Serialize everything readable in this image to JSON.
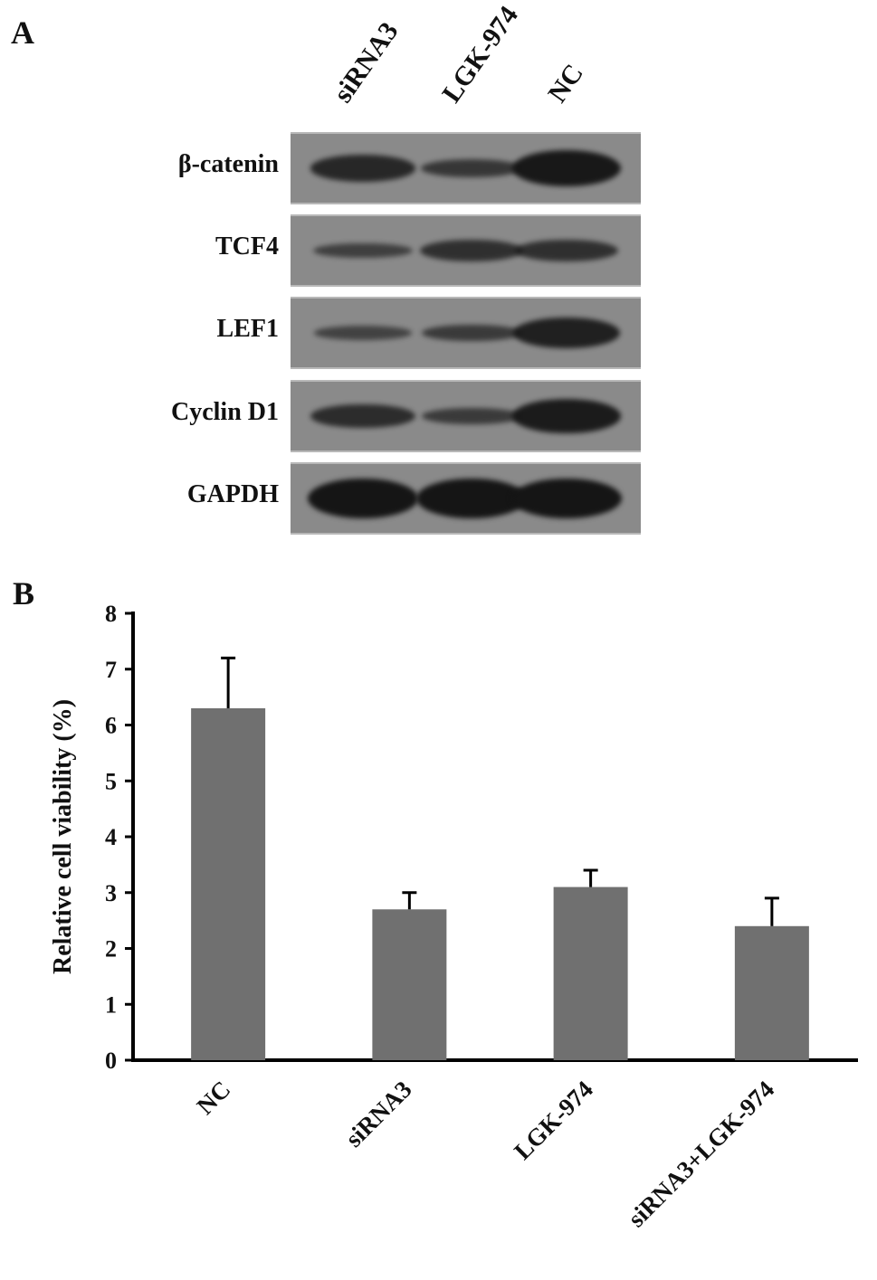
{
  "panel_a": {
    "label": "A",
    "lanes": [
      "siRNA3",
      "LGK-974",
      "NC"
    ],
    "rows": [
      {
        "protein": "β-catenin",
        "intensity": [
          0.75,
          0.55,
          0.95
        ]
      },
      {
        "protein": "TCF4",
        "intensity": [
          0.45,
          0.65,
          0.65
        ]
      },
      {
        "protein": "LEF1",
        "intensity": [
          0.4,
          0.5,
          0.85
        ]
      },
      {
        "protein": "Cyclin D1",
        "intensity": [
          0.7,
          0.5,
          0.9
        ]
      },
      {
        "protein": "GAPDH",
        "intensity": [
          1.0,
          1.0,
          1.0
        ]
      }
    ]
  },
  "panel_b": {
    "label": "B"
  },
  "chart_data": {
    "type": "bar",
    "categories": [
      "NC",
      "siRNA3",
      "LGK-974",
      "siRNA3+LGK-974"
    ],
    "values": [
      6.3,
      2.7,
      3.1,
      2.4
    ],
    "errors": [
      0.9,
      0.3,
      0.3,
      0.5
    ],
    "ylabel": "Relative cell viability (%)",
    "xlabel": "",
    "ylim": [
      0,
      8
    ],
    "yticks": [
      "0",
      "1",
      "2",
      "3",
      "4",
      "5",
      "6",
      "7",
      "8"
    ],
    "bar_color": "#707070",
    "grid": false
  }
}
